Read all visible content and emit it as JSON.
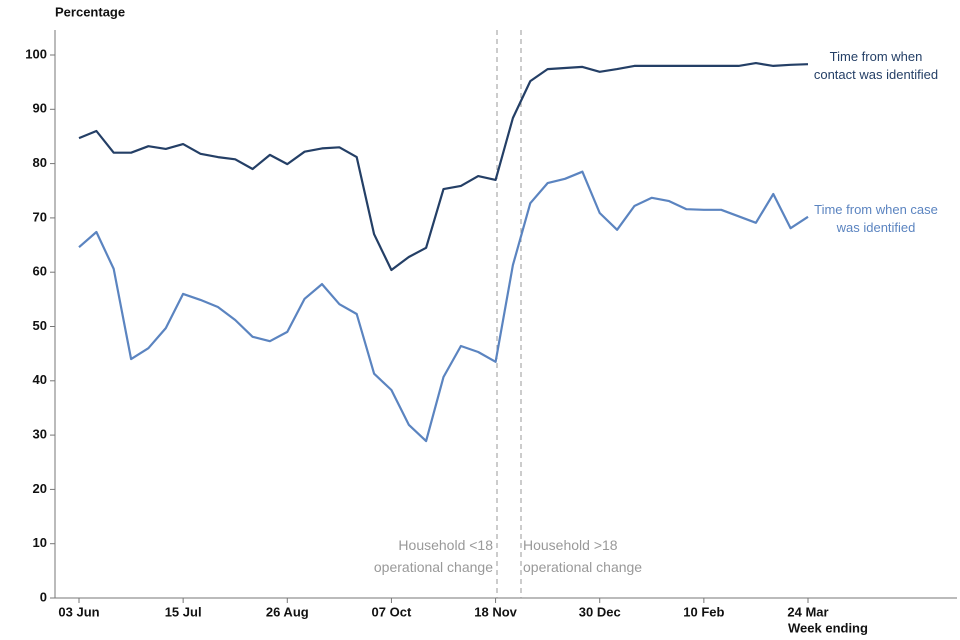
{
  "chart_data": {
    "type": "line",
    "y_label": "Percentage",
    "x_label": "Week ending",
    "categories": [
      "03 Jun",
      null,
      null,
      null,
      null,
      null,
      "15 Jul",
      null,
      null,
      null,
      null,
      null,
      "26 Aug",
      null,
      null,
      null,
      null,
      null,
      "07 Oct",
      null,
      null,
      null,
      null,
      null,
      "18 Nov",
      null,
      null,
      null,
      null,
      null,
      "30 Dec",
      null,
      null,
      null,
      null,
      null,
      "10 Feb",
      null,
      null,
      null,
      null,
      null,
      "24 Mar"
    ],
    "series": [
      {
        "name": "Time from when contact was identified",
        "color": "#243f66",
        "values": [
          84.7,
          86,
          82,
          82,
          83.2,
          82.7,
          83.6,
          81.8,
          81.2,
          80.8,
          79,
          81.6,
          79.9,
          82.2,
          82.8,
          83,
          81.2,
          67,
          60.4,
          62.8,
          64.5,
          75.3,
          75.9,
          77.7,
          77,
          88.4,
          95.2,
          97.4,
          97.6,
          97.8,
          96.9,
          97.4,
          98,
          98,
          98,
          98,
          98,
          98,
          98,
          98.5,
          98,
          98.2,
          98.3
        ]
      },
      {
        "name": "Time from when case was identified",
        "color": "#5b84c0",
        "values": [
          64.6,
          67.4,
          60.6,
          44,
          46,
          49.7,
          56,
          54.9,
          53.6,
          51.2,
          48.1,
          47.3,
          49,
          55.1,
          57.8,
          54.1,
          52.3,
          41.3,
          38.3,
          31.9,
          28.9,
          40.7,
          46.4,
          45.3,
          43.5,
          61.3,
          72.7,
          76.4,
          77.2,
          78.5,
          70.9,
          67.8,
          72.2,
          73.7,
          73.1,
          71.6,
          71.5,
          71.5,
          70.3,
          69.1,
          74.4,
          68.1,
          70.2
        ]
      }
    ],
    "annotations": [
      "Household <18 operational change",
      "Household >18 operational change"
    ],
    "ylim": [
      0,
      105
    ],
    "yticks": [
      0,
      10,
      20,
      30,
      40,
      50,
      60,
      70,
      80,
      90,
      100
    ]
  }
}
